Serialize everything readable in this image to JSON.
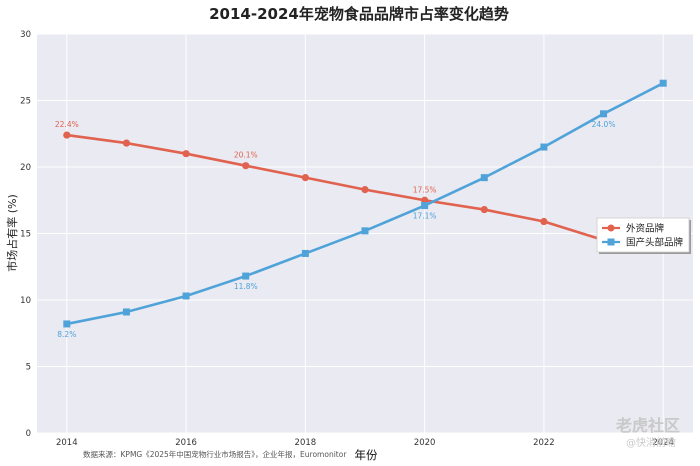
{
  "chart_data": {
    "type": "line",
    "title": "2014-2024年宠物食品品牌市占率变化趋势",
    "xlabel": "年份",
    "ylabel": "市场占有率 (%)",
    "x": [
      2014,
      2015,
      2016,
      2017,
      2018,
      2019,
      2020,
      2021,
      2022,
      2023,
      2024
    ],
    "xticks": [
      2014,
      2016,
      2018,
      2020,
      2022,
      2024
    ],
    "ylim": [
      0,
      30
    ],
    "yticks": [
      0,
      5,
      10,
      15,
      20,
      25,
      30
    ],
    "grid": true,
    "legend_position": "right",
    "series": [
      {
        "name": "外资品牌",
        "color": "#e0624f",
        "marker": "circle",
        "values": [
          22.4,
          21.8,
          21.0,
          20.1,
          19.2,
          18.3,
          17.5,
          16.8,
          15.9,
          14.5,
          13.8
        ],
        "labels": [
          {
            "x": 2014,
            "text": "22.4%",
            "pos": "above"
          },
          {
            "x": 2017,
            "text": "20.1%",
            "pos": "above"
          },
          {
            "x": 2020,
            "text": "17.5%",
            "pos": "above"
          }
        ]
      },
      {
        "name": "国产头部品牌",
        "color": "#4fa3d9",
        "marker": "square",
        "values": [
          8.2,
          9.1,
          10.3,
          11.8,
          13.5,
          15.2,
          17.1,
          19.2,
          21.5,
          24.0,
          26.3
        ],
        "labels": [
          {
            "x": 2014,
            "text": "8.2%",
            "pos": "below"
          },
          {
            "x": 2017,
            "text": "11.8%",
            "pos": "below"
          },
          {
            "x": 2020,
            "text": "17.1%",
            "pos": "below"
          },
          {
            "x": 2023,
            "text": "24.0%",
            "pos": "below"
          }
        ]
      }
    ],
    "source": "数据来源：KPMG《2025年中国宠物行业市场报告》，企业年报，Euromonitor"
  },
  "watermark": {
    "text": "老虎社区",
    "sub": "@快消前瞻"
  }
}
